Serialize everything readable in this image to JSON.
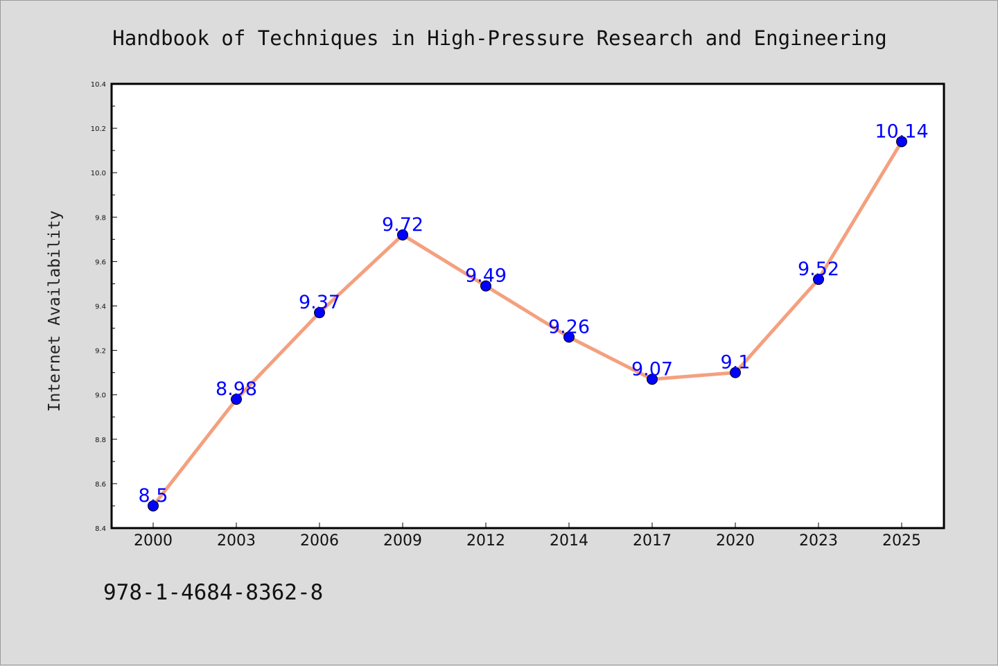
{
  "isbn": "978-1-4684-8362-8",
  "chart_data": {
    "type": "line",
    "title": "Handbook of Techniques in High-Pressure Research and Engineering",
    "xlabel": "",
    "ylabel": "Internet Availability",
    "categories": [
      "2000",
      "2003",
      "2006",
      "2009",
      "2012",
      "2014",
      "2017",
      "2020",
      "2023",
      "2025"
    ],
    "series": [
      {
        "values": [
          8.5,
          8.98,
          9.37,
          9.72,
          9.49,
          9.26,
          9.07,
          9.1,
          9.52,
          10.14
        ],
        "labels": [
          "8.5",
          "8.98",
          "9.37",
          "9.72",
          "9.49",
          "9.26",
          "9.07",
          "9.1",
          "9.52",
          "10.14"
        ],
        "line_color": "#f4a07f",
        "marker_color": "#0000ff",
        "label_color": "#0000ff"
      }
    ],
    "ylim": [
      8.4,
      10.4
    ],
    "yticks": [
      "8.4",
      "8.6",
      "8.8",
      "9.0",
      "9.2",
      "9.4",
      "9.6",
      "9.8",
      "10.0",
      "10.2",
      "10.4"
    ],
    "grid": false,
    "legend": "none",
    "background": "#dcdcdc",
    "plot_background": "#ffffff"
  }
}
